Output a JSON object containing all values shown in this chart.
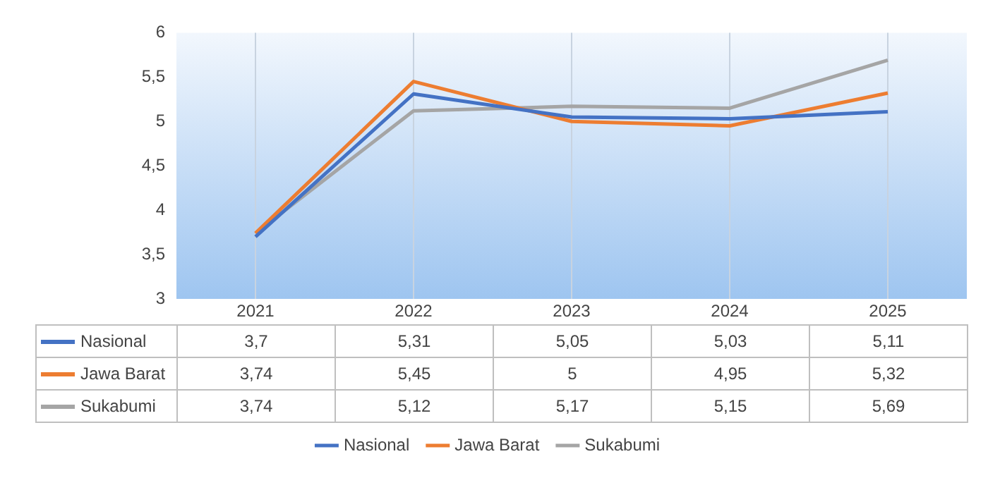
{
  "chart_data": {
    "type": "line",
    "categories": [
      "2021",
      "2022",
      "2023",
      "2024",
      "2025"
    ],
    "series": [
      {
        "name": "Nasional",
        "color": "#4472c4",
        "values": [
          3.7,
          5.31,
          5.05,
          5.03,
          5.11
        ],
        "value_labels": [
          "3,7",
          "5,31",
          "5,05",
          "5,03",
          "5,11"
        ]
      },
      {
        "name": "Jawa Barat",
        "color": "#ed7d31",
        "values": [
          3.74,
          5.45,
          5,
          4.95,
          5.32
        ],
        "value_labels": [
          "3,74",
          "5,45",
          "5",
          "4,95",
          "5,32"
        ]
      },
      {
        "name": "Sukabumi",
        "color": "#a5a5a5",
        "values": [
          3.74,
          5.12,
          5.17,
          5.15,
          5.69
        ],
        "value_labels": [
          "3,74",
          "5,12",
          "5,17",
          "5,15",
          "5,69"
        ]
      }
    ],
    "ylim": [
      3,
      6
    ],
    "yticks": [
      3,
      {
        "value": 3.5,
        "label": "3,5"
      },
      4,
      {
        "value": 4.5,
        "label": "4,5"
      },
      5,
      {
        "value": 5.5,
        "label": "5,5"
      },
      6
    ],
    "grid": "x",
    "legend": "bottom",
    "marker": "none"
  }
}
